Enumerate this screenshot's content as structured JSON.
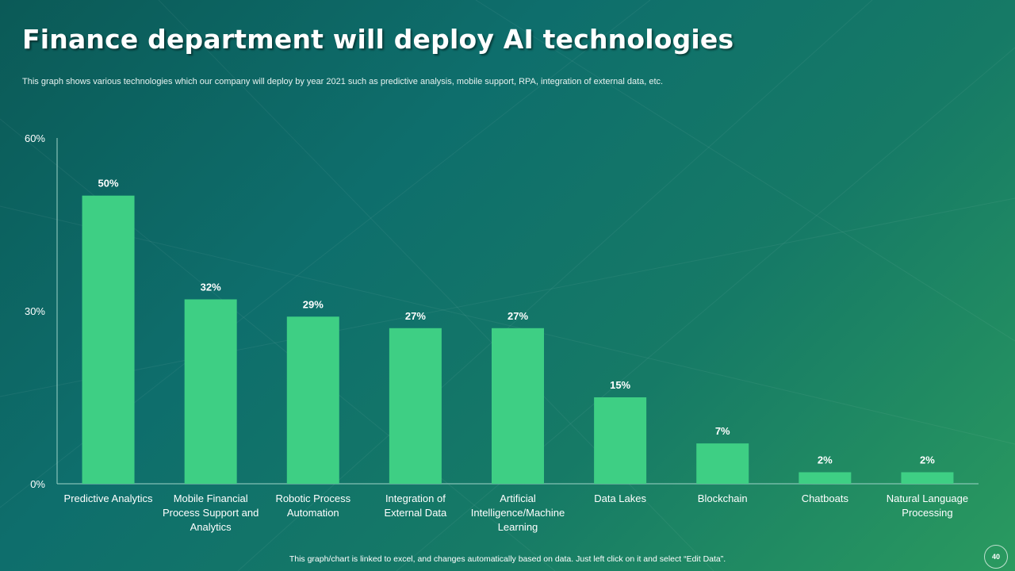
{
  "header": {
    "title": "Finance department will deploy AI technologies",
    "subtitle": "This graph shows various technologies which our company will deploy by year 2021 such as predictive analysis, mobile support, RPA, integration of external data, etc."
  },
  "footer": {
    "note": "This graph/chart is linked to excel, and changes automatically based on data. Just left click on it and select “Edit Data”.",
    "page_number": "40"
  },
  "colors": {
    "bar": "#3ecf84",
    "axis": "#9fd4c8",
    "text": "#ffffff"
  },
  "chart_data": {
    "type": "bar",
    "title": "",
    "xlabel": "",
    "ylabel": "",
    "ylim": [
      0,
      60
    ],
    "y_ticks": [
      {
        "value": 0,
        "label": "0%"
      },
      {
        "value": 30,
        "label": "30%"
      },
      {
        "value": 60,
        "label": "60%"
      }
    ],
    "grid": false,
    "legend": "none",
    "categories": [
      [
        "Predictive Analytics"
      ],
      [
        "Mobile Financial",
        "Process Support and",
        "Analytics"
      ],
      [
        "Robotic Process",
        "Automation"
      ],
      [
        "Integration of",
        "External Data"
      ],
      [
        "Artificial",
        "Intelligence/Machine",
        "Learning"
      ],
      [
        "Data Lakes"
      ],
      [
        "Blockchain"
      ],
      [
        "Chatboats"
      ],
      [
        "Natural Language",
        "Processing"
      ]
    ],
    "values": [
      50,
      32,
      29,
      27,
      27,
      15,
      7,
      2,
      2
    ],
    "data_labels": [
      "50%",
      "32%",
      "29%",
      "27%",
      "27%",
      "15%",
      "7%",
      "2%",
      "2%"
    ]
  }
}
